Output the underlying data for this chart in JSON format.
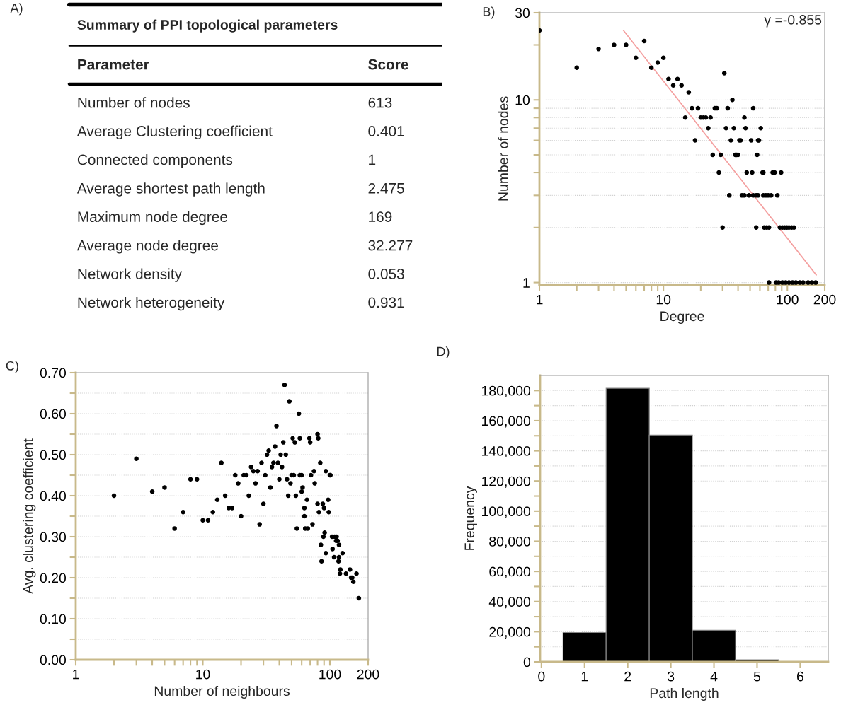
{
  "chart_data": [
    {
      "type": "other",
      "title": "Summary of PPI topological parameters",
      "annotations": [
        "A)",
        "Parameter",
        "Score",
        "Number of nodes",
        "613",
        "Average Clustering coefficient",
        "0.401",
        "Connected components",
        "1",
        "Average shortest path length",
        "2.475",
        "Maximum node degree",
        "169",
        "Average node degree",
        "32.277",
        "Network density",
        "0.053",
        "Network heterogeneity",
        "0.931"
      ]
    },
    {
      "type": "scatter",
      "xlabel": "Degree",
      "ylabel": "Number of nodes",
      "log": "xy",
      "grid": "y",
      "annotations": [
        "B)",
        "γ =-0.855"
      ],
      "xlim": [
        1,
        200
      ],
      "ylim": [
        0.97,
        30
      ],
      "xticks": [
        1,
        {
          "value": 2,
          "label": null
        },
        {
          "value": 3,
          "label": null
        },
        {
          "value": 4,
          "label": null
        },
        {
          "value": 5,
          "label": null
        },
        {
          "value": 6,
          "label": null
        },
        {
          "value": 7,
          "label": null
        },
        {
          "value": 8,
          "label": null
        },
        {
          "value": 9,
          "label": null
        },
        10,
        {
          "value": 20,
          "label": null
        },
        {
          "value": 30,
          "label": null
        },
        {
          "value": 40,
          "label": null
        },
        {
          "value": 50,
          "label": null
        },
        {
          "value": 60,
          "label": null
        },
        {
          "value": 70,
          "label": null
        },
        {
          "value": 80,
          "label": null
        },
        {
          "value": 90,
          "label": null
        },
        100,
        200
      ],
      "yticks": [
        1,
        {
          "value": 2,
          "label": null
        },
        {
          "value": 3,
          "label": null
        },
        {
          "value": 4,
          "label": null
        },
        {
          "value": 5,
          "label": null
        },
        {
          "value": 6,
          "label": null
        },
        {
          "value": 7,
          "label": null
        },
        {
          "value": 8,
          "label": null
        },
        {
          "value": 9,
          "label": null
        },
        10,
        {
          "value": 20,
          "label": null
        },
        30
      ],
      "series": [
        {
          "type": "scatter",
          "marker": "circle",
          "color": "#000000",
          "x": [
            1,
            2,
            3,
            4,
            5,
            6,
            7,
            8,
            9,
            10,
            11,
            12,
            13,
            14,
            15,
            16,
            17,
            18,
            19,
            20,
            21,
            22,
            23,
            24,
            25,
            26,
            27,
            28,
            29,
            30,
            31,
            32,
            33,
            34,
            35,
            36,
            37,
            38,
            39,
            40,
            41,
            42,
            43,
            45,
            45,
            46,
            47,
            49,
            51,
            52,
            53,
            53,
            56,
            56,
            57,
            58,
            58,
            59,
            61,
            63,
            64,
            64,
            65,
            67,
            68,
            70,
            71,
            74,
            76,
            79,
            83,
            87,
            89,
            91,
            95,
            99,
            103,
            108,
            113,
            71,
            81,
            85,
            91,
            97,
            103,
            110,
            117,
            126,
            134,
            147,
            157,
            169
          ],
          "values": [
            24,
            15,
            19,
            20,
            20,
            17,
            21,
            15,
            16,
            17,
            13,
            12,
            13,
            12,
            8,
            11,
            9,
            6,
            9,
            8,
            8,
            8,
            7,
            8,
            5,
            9,
            9,
            4,
            5,
            2,
            14,
            7,
            9,
            3,
            6,
            10,
            7,
            5,
            5,
            5,
            6,
            6,
            3,
            3,
            8,
            7,
            4,
            3,
            6,
            4,
            9,
            3,
            3,
            2,
            5,
            3,
            6,
            6,
            7,
            4,
            4,
            3,
            2,
            3,
            2,
            3,
            2,
            3,
            4,
            4,
            3,
            2,
            4,
            2,
            2,
            2,
            2,
            2,
            2,
            1,
            1,
            1,
            1,
            1,
            1,
            1,
            1,
            1,
            1,
            1,
            1,
            1
          ]
        },
        {
          "type": "line",
          "color": "#f4a0a0",
          "x": [
            4.76,
            171
          ],
          "values": [
            24,
            1.1
          ]
        }
      ]
    },
    {
      "type": "scatter",
      "xlabel": "Number of neighbours",
      "ylabel": "Avg. clustering coefficient",
      "log": "x",
      "grid": "y",
      "marker": "circle",
      "annotations": [
        "C)"
      ],
      "xlim": [
        1,
        200
      ],
      "ylim": [
        0,
        0.7
      ],
      "xticks": [
        1,
        {
          "value": 2,
          "label": null
        },
        {
          "value": 3,
          "label": null
        },
        {
          "value": 4,
          "label": null
        },
        {
          "value": 5,
          "label": null
        },
        {
          "value": 6,
          "label": null
        },
        {
          "value": 7,
          "label": null
        },
        {
          "value": 8,
          "label": null
        },
        {
          "value": 9,
          "label": null
        },
        10,
        {
          "value": 20,
          "label": null
        },
        {
          "value": 30,
          "label": null
        },
        {
          "value": 40,
          "label": null
        },
        {
          "value": 50,
          "label": null
        },
        {
          "value": 60,
          "label": null
        },
        {
          "value": 70,
          "label": null
        },
        {
          "value": 80,
          "label": null
        },
        {
          "value": 90,
          "label": null
        },
        100,
        200
      ],
      "yticks": [
        {
          "value": 0,
          "label": "0.00"
        },
        {
          "value": 0.05,
          "label": null
        },
        {
          "value": 0.1,
          "label": "0.10"
        },
        {
          "value": 0.15,
          "label": null
        },
        {
          "value": 0.2,
          "label": "0.20"
        },
        {
          "value": 0.25,
          "label": null
        },
        {
          "value": 0.3,
          "label": "0.30"
        },
        {
          "value": 0.35,
          "label": null
        },
        {
          "value": 0.4,
          "label": "0.40"
        },
        {
          "value": 0.45,
          "label": null
        },
        {
          "value": 0.5,
          "label": "0.50"
        },
        {
          "value": 0.55,
          "label": null
        },
        {
          "value": 0.6,
          "label": "0.60"
        },
        {
          "value": 0.65,
          "label": null
        },
        {
          "value": 0.7,
          "label": "0.70"
        }
      ],
      "series": [
        {
          "type": "scatter",
          "color": "#000000",
          "x": [
            2,
            3,
            4,
            5,
            6,
            7,
            8,
            9,
            10,
            11,
            12,
            13,
            14,
            15,
            16,
            17,
            18,
            19,
            20,
            21,
            22,
            23,
            24,
            25,
            26,
            27,
            28,
            29,
            30,
            31,
            32,
            33,
            34,
            35,
            36,
            37,
            38,
            39,
            40,
            41,
            42,
            43,
            44,
            45,
            46,
            47,
            48,
            49,
            50,
            51,
            52,
            53,
            54,
            55,
            57,
            58,
            58,
            60,
            60,
            61,
            63,
            63,
            64,
            66,
            67,
            69,
            70,
            71,
            73,
            75,
            76,
            80,
            80,
            81,
            82,
            84,
            85,
            86,
            88,
            89,
            90,
            91,
            93,
            93,
            97,
            98,
            100,
            101,
            104,
            105,
            108,
            109,
            112,
            113,
            115,
            117,
            118,
            118,
            120,
            121,
            126,
            134,
            144,
            147,
            150,
            153,
            162,
            169
          ],
          "values": [
            0.4,
            0.49,
            0.41,
            0.42,
            0.32,
            0.36,
            0.44,
            0.44,
            0.34,
            0.34,
            0.36,
            0.39,
            0.48,
            0.4,
            0.37,
            0.37,
            0.45,
            0.43,
            0.35,
            0.45,
            0.45,
            0.4,
            0.47,
            0.46,
            0.43,
            0.46,
            0.33,
            0.48,
            0.38,
            0.45,
            0.5,
            0.51,
            0.42,
            0.47,
            0.48,
            0.52,
            0.57,
            0.48,
            0.44,
            0.5,
            0.47,
            0.53,
            0.67,
            0.5,
            0.44,
            0.4,
            0.63,
            0.43,
            0.45,
            0.54,
            0.45,
            0.53,
            0.4,
            0.32,
            0.6,
            0.45,
            0.54,
            0.41,
            0.45,
            0.42,
            0.35,
            0.37,
            0.32,
            0.39,
            0.32,
            0.54,
            0.53,
            0.45,
            0.33,
            0.46,
            0.43,
            0.38,
            0.55,
            0.54,
            0.36,
            0.48,
            0.28,
            0.24,
            0.38,
            0.3,
            0.37,
            0.31,
            0.46,
            0.26,
            0.39,
            0.36,
            0.45,
            0.45,
            0.3,
            0.27,
            0.25,
            0.3,
            0.29,
            0.3,
            0.29,
            0.24,
            0.25,
            0.28,
            0.21,
            0.22,
            0.26,
            0.21,
            0.22,
            0.2,
            0.2,
            0.19,
            0.21,
            0.15
          ]
        }
      ]
    },
    {
      "type": "histogram",
      "xlabel": "Path length",
      "ylabel": "Frequency",
      "grid": "y",
      "color": "#000000",
      "annotations": [
        "D)"
      ],
      "bins": [
        0.5,
        1.5,
        2.5,
        3.5,
        4.5,
        5.5
      ],
      "values": [
        19500,
        181500,
        150500,
        21000,
        1400
      ],
      "xlim": [
        -0.03,
        6.65
      ],
      "ylim": [
        0,
        190000
      ],
      "xticks": [
        0,
        1,
        2,
        3,
        4,
        5,
        6
      ],
      "yticks": [
        {
          "value": 0,
          "label": "0"
        },
        {
          "value": 10000,
          "label": null
        },
        {
          "value": 20000,
          "label": "20,000"
        },
        {
          "value": 30000,
          "label": null
        },
        {
          "value": 40000,
          "label": "40,000"
        },
        {
          "value": 50000,
          "label": null
        },
        {
          "value": 60000,
          "label": "60,000"
        },
        {
          "value": 70000,
          "label": null
        },
        {
          "value": 80000,
          "label": "80,000"
        },
        {
          "value": 90000,
          "label": null
        },
        {
          "value": 100000,
          "label": "100,000"
        },
        {
          "value": 110000,
          "label": null
        },
        {
          "value": 120000,
          "label": "120,000"
        },
        {
          "value": 130000,
          "label": null
        },
        {
          "value": 140000,
          "label": "140,000"
        },
        {
          "value": 150000,
          "label": null
        },
        {
          "value": 160000,
          "label": "160,000"
        },
        {
          "value": 170000,
          "label": null
        },
        {
          "value": 180000,
          "label": "180,000"
        }
      ]
    }
  ]
}
